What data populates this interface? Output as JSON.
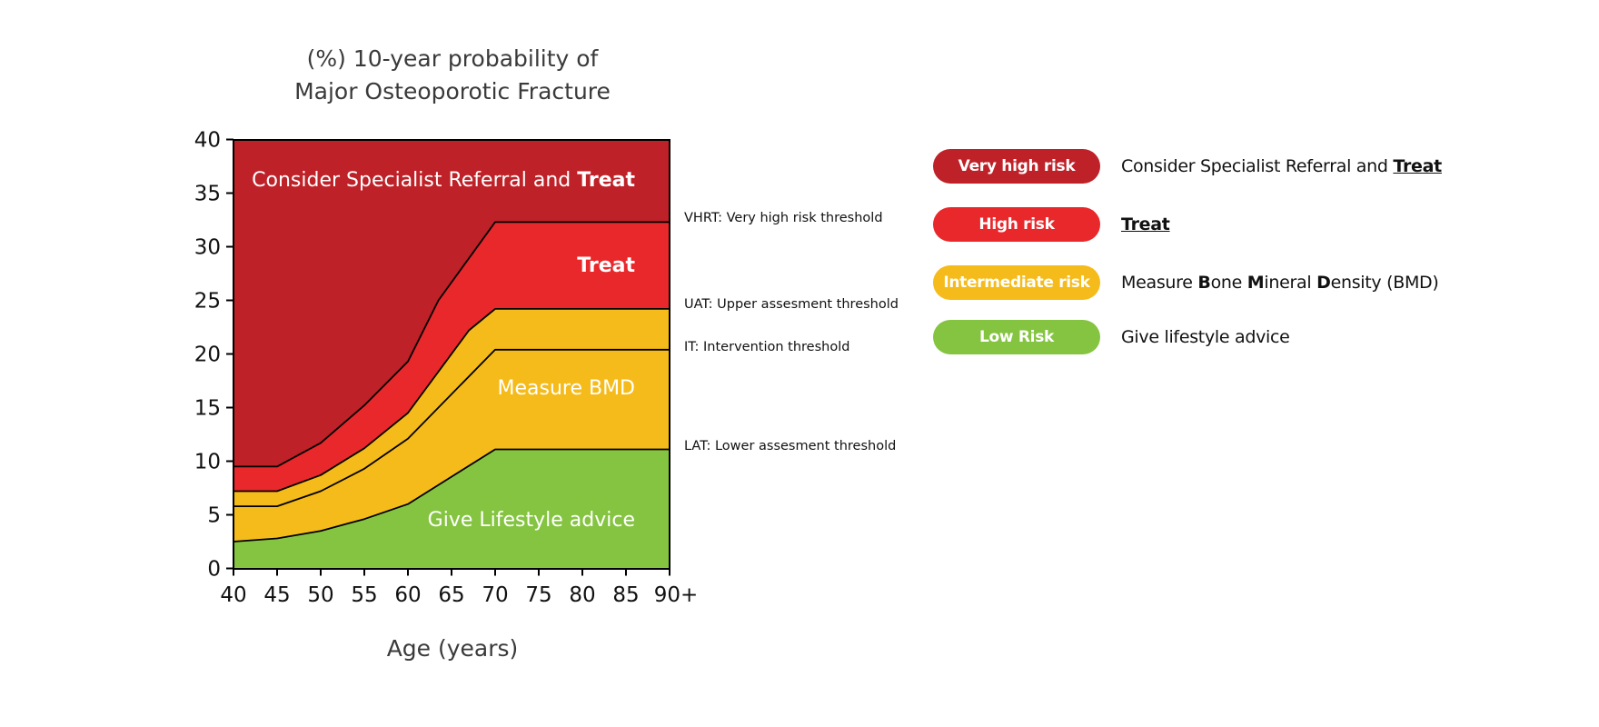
{
  "chart_data": {
    "type": "area",
    "title_lines": [
      "(%) 10-year probability of",
      "Major Osteoporotic Fracture"
    ],
    "xlabel": "Age (years)",
    "ylabel": "",
    "xlim": [
      40,
      90
    ],
    "ylim": [
      0,
      40
    ],
    "x_ticks": [
      40,
      45,
      50,
      55,
      60,
      65,
      70,
      75,
      80,
      85,
      90
    ],
    "x_tick_labels": [
      "40",
      "45",
      "50",
      "55",
      "60",
      "65",
      "70",
      "75",
      "80",
      "85",
      "90+"
    ],
    "y_ticks": [
      0,
      5,
      10,
      15,
      20,
      25,
      30,
      35,
      40
    ],
    "y_tick_labels": [
      "0",
      "5",
      "10",
      "15",
      "20",
      "25",
      "30",
      "35",
      "40"
    ],
    "grid": false,
    "series": [
      {
        "name": "VHRT: Very high risk threshold",
        "points": [
          [
            40,
            9.5
          ],
          [
            45,
            9.5
          ],
          [
            50,
            11.7
          ],
          [
            55,
            15.2
          ],
          [
            60,
            19.3
          ],
          [
            63.5,
            25.0
          ],
          [
            70,
            32.3
          ],
          [
            90,
            32.3
          ]
        ]
      },
      {
        "name": "UAT: Upper assesment  threshold",
        "points": [
          [
            40,
            7.2
          ],
          [
            45,
            7.2
          ],
          [
            50,
            8.7
          ],
          [
            55,
            11.2
          ],
          [
            60,
            14.5
          ],
          [
            67,
            22.2
          ],
          [
            70,
            24.2
          ],
          [
            90,
            24.2
          ]
        ]
      },
      {
        "name": "IT: Intervention  threshold",
        "points": [
          [
            40,
            5.8
          ],
          [
            45,
            5.8
          ],
          [
            50,
            7.2
          ],
          [
            55,
            9.3
          ],
          [
            60,
            12.1
          ],
          [
            70,
            20.4
          ],
          [
            90,
            20.4
          ]
        ]
      },
      {
        "name": "LAT: Lower assesment  threshold",
        "points": [
          [
            40,
            2.5
          ],
          [
            45,
            2.8
          ],
          [
            50,
            3.5
          ],
          [
            55,
            4.6
          ],
          [
            60,
            6.0
          ],
          [
            70,
            11.1
          ],
          [
            90,
            11.1
          ]
        ]
      }
    ],
    "zones": [
      {
        "name": "very-high-risk",
        "color": "#be2128",
        "label": "Consider Specialist Referral and ",
        "label_bold": "Treat"
      },
      {
        "name": "high-risk",
        "color": "#e8282b",
        "label": "",
        "label_bold": "Treat"
      },
      {
        "name": "intermediate-risk-upper",
        "color": "#f5bb1a",
        "label": "",
        "label_bold": ""
      },
      {
        "name": "intermediate-risk",
        "color": "#f5bb1a",
        "label": "Measure BMD",
        "label_bold": ""
      },
      {
        "name": "low-risk",
        "color": "#85c441",
        "label": "Give Lifestyle advice",
        "label_bold": ""
      }
    ]
  },
  "legend": [
    {
      "badge": "Very high risk",
      "color": "#be2128",
      "text_parts": [
        {
          "t": "Consider Specialist Referral and ",
          "s": "normal"
        },
        {
          "t": "Treat",
          "s": "underline"
        }
      ]
    },
    {
      "badge": "High risk",
      "color": "#e8282b",
      "text_parts": [
        {
          "t": "Treat",
          "s": "underline"
        }
      ]
    },
    {
      "badge": "Intermediate risk",
      "color": "#f5bb1a",
      "text_parts": [
        {
          "t": "Measure ",
          "s": "normal"
        },
        {
          "t": "B",
          "s": "bold"
        },
        {
          "t": "one ",
          "s": "normal"
        },
        {
          "t": "M",
          "s": "bold"
        },
        {
          "t": "ineral ",
          "s": "normal"
        },
        {
          "t": "D",
          "s": "bold"
        },
        {
          "t": "ensity (BMD)",
          "s": "normal"
        }
      ]
    },
    {
      "badge": "Low Risk",
      "color": "#85c441",
      "text_parts": [
        {
          "t": "Give lifestyle advice",
          "s": "normal"
        }
      ]
    }
  ]
}
